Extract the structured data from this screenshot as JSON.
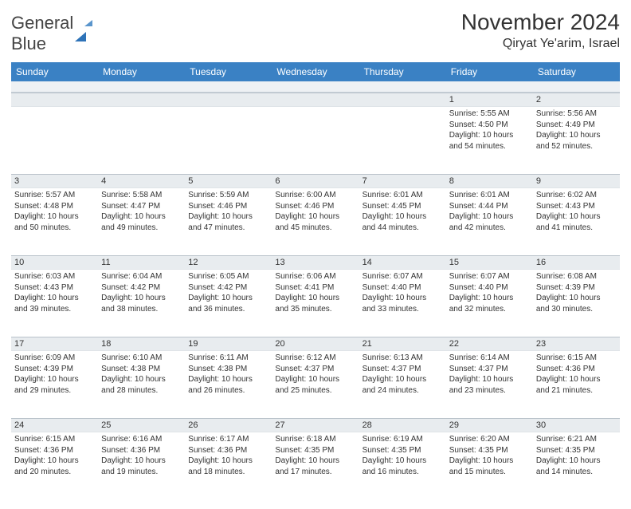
{
  "logo": {
    "line1": "General",
    "line2": "Blue"
  },
  "title": "November 2024",
  "location": "Qiryat Ye'arim, Israel",
  "weekdays": [
    "Sunday",
    "Monday",
    "Tuesday",
    "Wednesday",
    "Thursday",
    "Friday",
    "Saturday"
  ],
  "colors": {
    "header_bg": "#3a81c4",
    "stripe_bg": "#e8ecef"
  },
  "weeks": [
    [
      null,
      null,
      null,
      null,
      null,
      {
        "n": "1",
        "sr": "Sunrise: 5:55 AM",
        "ss": "Sunset: 4:50 PM",
        "d1": "Daylight: 10 hours",
        "d2": "and 54 minutes."
      },
      {
        "n": "2",
        "sr": "Sunrise: 5:56 AM",
        "ss": "Sunset: 4:49 PM",
        "d1": "Daylight: 10 hours",
        "d2": "and 52 minutes."
      }
    ],
    [
      {
        "n": "3",
        "sr": "Sunrise: 5:57 AM",
        "ss": "Sunset: 4:48 PM",
        "d1": "Daylight: 10 hours",
        "d2": "and 50 minutes."
      },
      {
        "n": "4",
        "sr": "Sunrise: 5:58 AM",
        "ss": "Sunset: 4:47 PM",
        "d1": "Daylight: 10 hours",
        "d2": "and 49 minutes."
      },
      {
        "n": "5",
        "sr": "Sunrise: 5:59 AM",
        "ss": "Sunset: 4:46 PM",
        "d1": "Daylight: 10 hours",
        "d2": "and 47 minutes."
      },
      {
        "n": "6",
        "sr": "Sunrise: 6:00 AM",
        "ss": "Sunset: 4:46 PM",
        "d1": "Daylight: 10 hours",
        "d2": "and 45 minutes."
      },
      {
        "n": "7",
        "sr": "Sunrise: 6:01 AM",
        "ss": "Sunset: 4:45 PM",
        "d1": "Daylight: 10 hours",
        "d2": "and 44 minutes."
      },
      {
        "n": "8",
        "sr": "Sunrise: 6:01 AM",
        "ss": "Sunset: 4:44 PM",
        "d1": "Daylight: 10 hours",
        "d2": "and 42 minutes."
      },
      {
        "n": "9",
        "sr": "Sunrise: 6:02 AM",
        "ss": "Sunset: 4:43 PM",
        "d1": "Daylight: 10 hours",
        "d2": "and 41 minutes."
      }
    ],
    [
      {
        "n": "10",
        "sr": "Sunrise: 6:03 AM",
        "ss": "Sunset: 4:43 PM",
        "d1": "Daylight: 10 hours",
        "d2": "and 39 minutes."
      },
      {
        "n": "11",
        "sr": "Sunrise: 6:04 AM",
        "ss": "Sunset: 4:42 PM",
        "d1": "Daylight: 10 hours",
        "d2": "and 38 minutes."
      },
      {
        "n": "12",
        "sr": "Sunrise: 6:05 AM",
        "ss": "Sunset: 4:42 PM",
        "d1": "Daylight: 10 hours",
        "d2": "and 36 minutes."
      },
      {
        "n": "13",
        "sr": "Sunrise: 6:06 AM",
        "ss": "Sunset: 4:41 PM",
        "d1": "Daylight: 10 hours",
        "d2": "and 35 minutes."
      },
      {
        "n": "14",
        "sr": "Sunrise: 6:07 AM",
        "ss": "Sunset: 4:40 PM",
        "d1": "Daylight: 10 hours",
        "d2": "and 33 minutes."
      },
      {
        "n": "15",
        "sr": "Sunrise: 6:07 AM",
        "ss": "Sunset: 4:40 PM",
        "d1": "Daylight: 10 hours",
        "d2": "and 32 minutes."
      },
      {
        "n": "16",
        "sr": "Sunrise: 6:08 AM",
        "ss": "Sunset: 4:39 PM",
        "d1": "Daylight: 10 hours",
        "d2": "and 30 minutes."
      }
    ],
    [
      {
        "n": "17",
        "sr": "Sunrise: 6:09 AM",
        "ss": "Sunset: 4:39 PM",
        "d1": "Daylight: 10 hours",
        "d2": "and 29 minutes."
      },
      {
        "n": "18",
        "sr": "Sunrise: 6:10 AM",
        "ss": "Sunset: 4:38 PM",
        "d1": "Daylight: 10 hours",
        "d2": "and 28 minutes."
      },
      {
        "n": "19",
        "sr": "Sunrise: 6:11 AM",
        "ss": "Sunset: 4:38 PM",
        "d1": "Daylight: 10 hours",
        "d2": "and 26 minutes."
      },
      {
        "n": "20",
        "sr": "Sunrise: 6:12 AM",
        "ss": "Sunset: 4:37 PM",
        "d1": "Daylight: 10 hours",
        "d2": "and 25 minutes."
      },
      {
        "n": "21",
        "sr": "Sunrise: 6:13 AM",
        "ss": "Sunset: 4:37 PM",
        "d1": "Daylight: 10 hours",
        "d2": "and 24 minutes."
      },
      {
        "n": "22",
        "sr": "Sunrise: 6:14 AM",
        "ss": "Sunset: 4:37 PM",
        "d1": "Daylight: 10 hours",
        "d2": "and 23 minutes."
      },
      {
        "n": "23",
        "sr": "Sunrise: 6:15 AM",
        "ss": "Sunset: 4:36 PM",
        "d1": "Daylight: 10 hours",
        "d2": "and 21 minutes."
      }
    ],
    [
      {
        "n": "24",
        "sr": "Sunrise: 6:15 AM",
        "ss": "Sunset: 4:36 PM",
        "d1": "Daylight: 10 hours",
        "d2": "and 20 minutes."
      },
      {
        "n": "25",
        "sr": "Sunrise: 6:16 AM",
        "ss": "Sunset: 4:36 PM",
        "d1": "Daylight: 10 hours",
        "d2": "and 19 minutes."
      },
      {
        "n": "26",
        "sr": "Sunrise: 6:17 AM",
        "ss": "Sunset: 4:36 PM",
        "d1": "Daylight: 10 hours",
        "d2": "and 18 minutes."
      },
      {
        "n": "27",
        "sr": "Sunrise: 6:18 AM",
        "ss": "Sunset: 4:35 PM",
        "d1": "Daylight: 10 hours",
        "d2": "and 17 minutes."
      },
      {
        "n": "28",
        "sr": "Sunrise: 6:19 AM",
        "ss": "Sunset: 4:35 PM",
        "d1": "Daylight: 10 hours",
        "d2": "and 16 minutes."
      },
      {
        "n": "29",
        "sr": "Sunrise: 6:20 AM",
        "ss": "Sunset: 4:35 PM",
        "d1": "Daylight: 10 hours",
        "d2": "and 15 minutes."
      },
      {
        "n": "30",
        "sr": "Sunrise: 6:21 AM",
        "ss": "Sunset: 4:35 PM",
        "d1": "Daylight: 10 hours",
        "d2": "and 14 minutes."
      }
    ]
  ]
}
